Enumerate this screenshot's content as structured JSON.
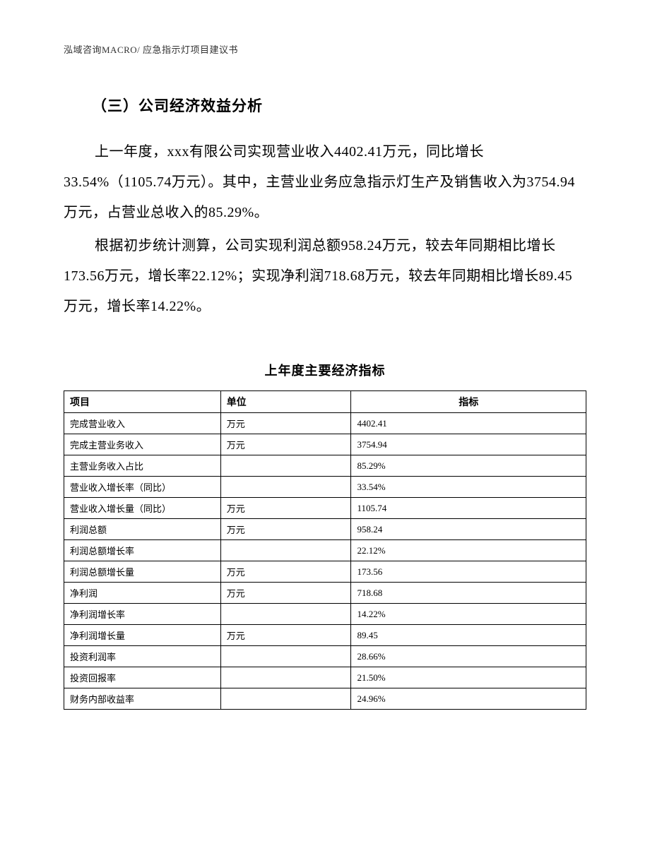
{
  "header": "泓域咨询MACRO/ 应急指示灯项目建议书",
  "section_title": "（三）公司经济效益分析",
  "paragraph1": "上一年度，xxx有限公司实现营业收入4402.41万元，同比增长33.54%（1105.74万元）。其中，主营业业务应急指示灯生产及销售收入为3754.94万元，占营业总收入的85.29%。",
  "paragraph2": "根据初步统计测算，公司实现利润总额958.24万元，较去年同期相比增长173.56万元，增长率22.12%；实现净利润718.68万元，较去年同期相比增长89.45万元，增长率14.22%。",
  "table": {
    "title": "上年度主要经济指标",
    "columns": [
      "项目",
      "单位",
      "指标"
    ],
    "rows": [
      [
        "完成营业收入",
        "万元",
        "4402.41"
      ],
      [
        "完成主营业务收入",
        "万元",
        "3754.94"
      ],
      [
        "主营业务收入占比",
        "",
        "85.29%"
      ],
      [
        "营业收入增长率（同比）",
        "",
        "33.54%"
      ],
      [
        "营业收入增长量（同比）",
        "万元",
        "1105.74"
      ],
      [
        "利润总额",
        "万元",
        "958.24"
      ],
      [
        "利润总额增长率",
        "",
        "22.12%"
      ],
      [
        "利润总额增长量",
        "万元",
        "173.56"
      ],
      [
        "净利润",
        "万元",
        "718.68"
      ],
      [
        "净利润增长率",
        "",
        "14.22%"
      ],
      [
        "净利润增长量",
        "万元",
        "89.45"
      ],
      [
        "投资利润率",
        "",
        "28.66%"
      ],
      [
        "投资回报率",
        "",
        "21.50%"
      ],
      [
        "财务内部收益率",
        "",
        "24.96%"
      ]
    ]
  }
}
